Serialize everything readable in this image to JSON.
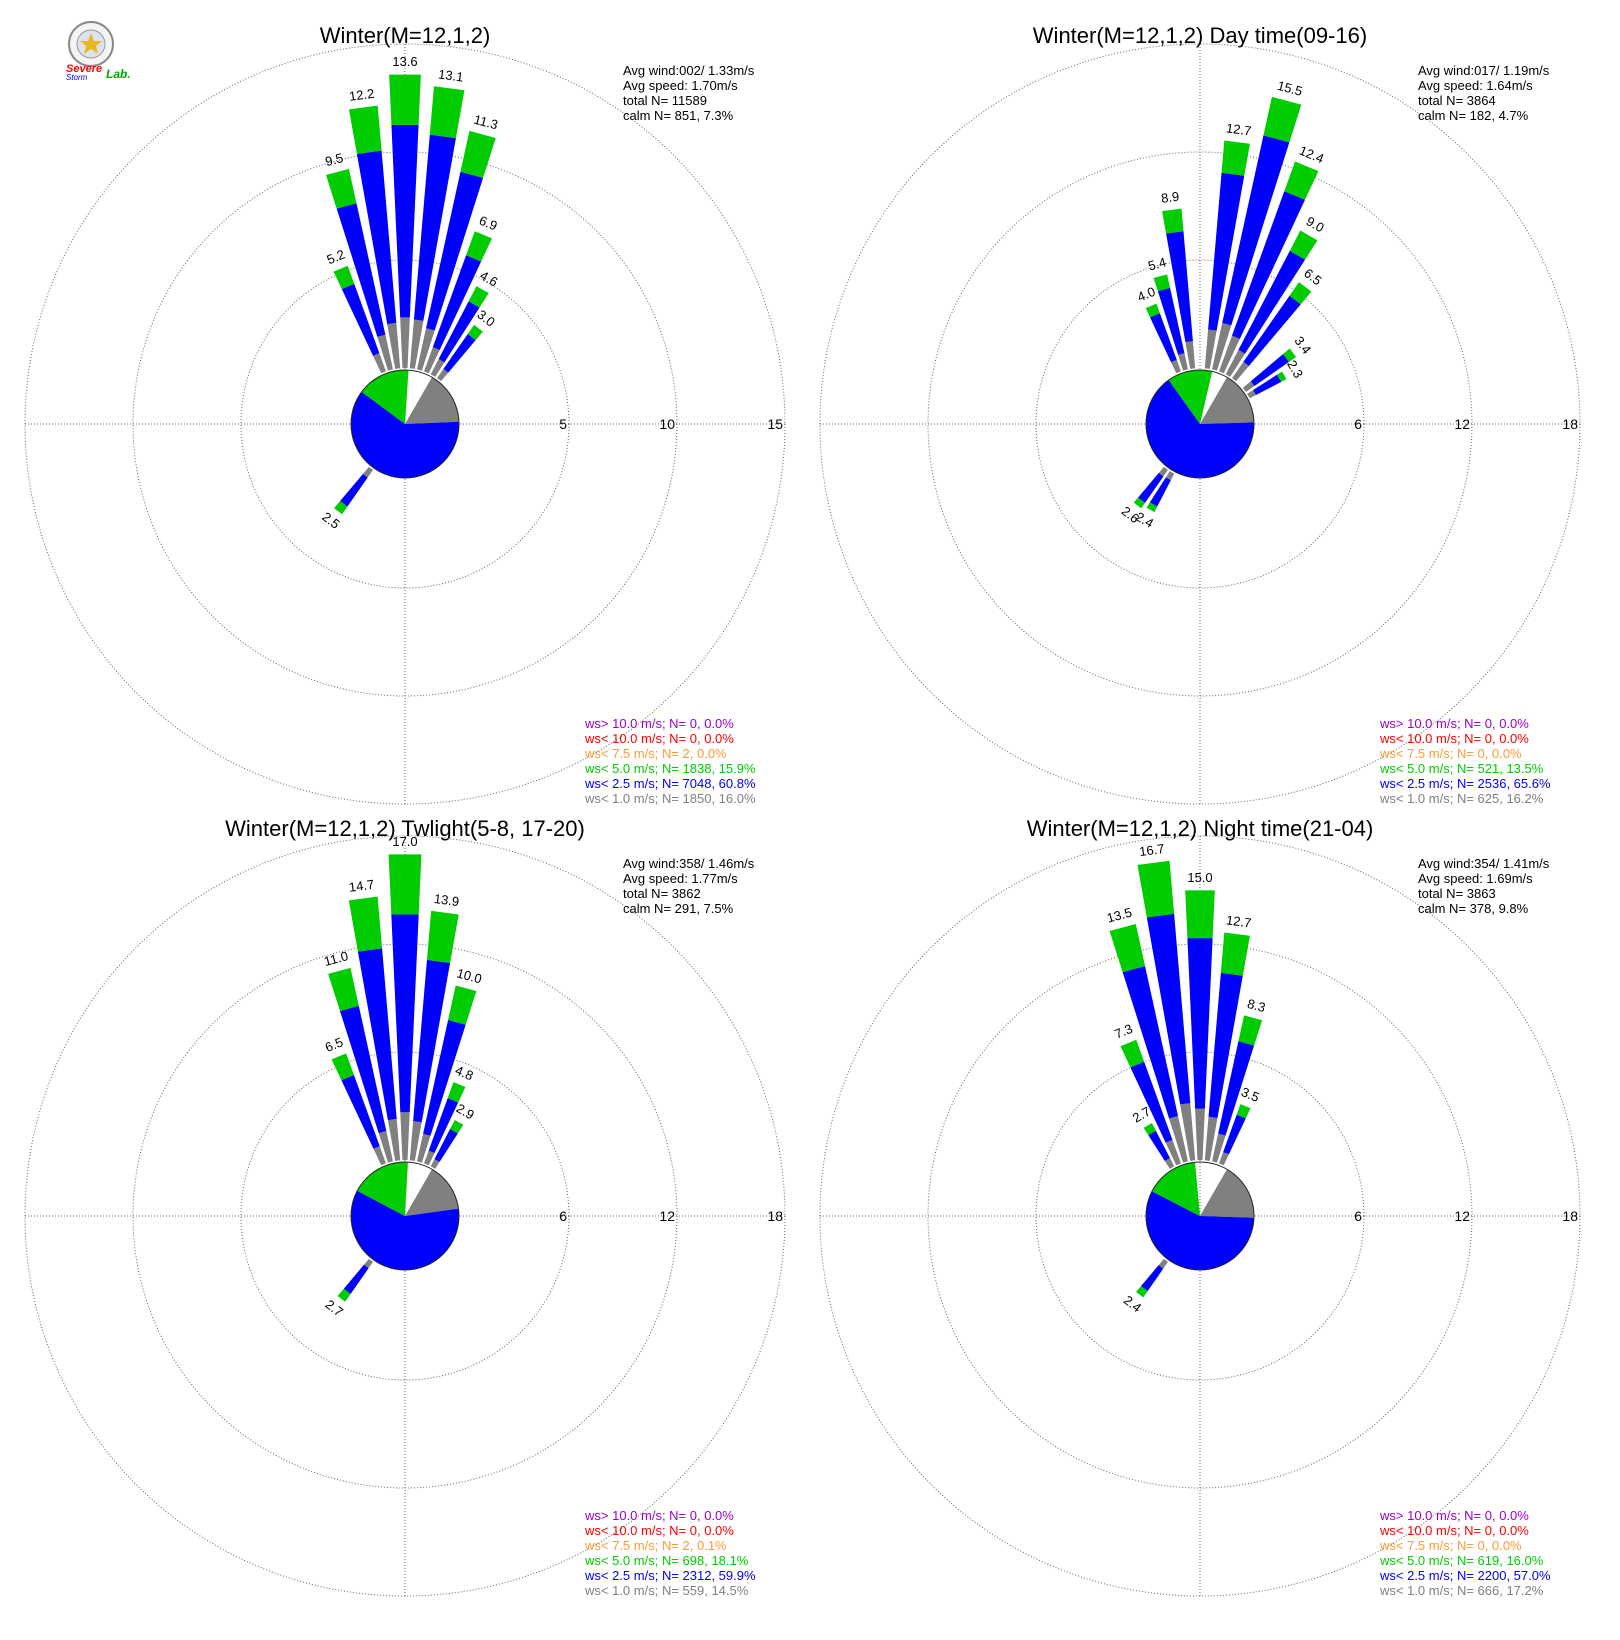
{
  "logo": {
    "line1": "Severe",
    "line2": "Storm",
    "line3": "Lab."
  },
  "colors": {
    "gray": "#808080",
    "blue": "#0000ff",
    "green": "#00cc00",
    "orange": "#ff9933",
    "red": "#ff0000",
    "purple": "#9900cc"
  },
  "chart_data": [
    {
      "type": "wind-rose",
      "title": "Winter(M=12,1,2)",
      "rmax": 15,
      "ticks": [
        5,
        10,
        15
      ],
      "stats": [
        "Avg wind:002/ 1.33m/s",
        "Avg speed: 1.70m/s",
        "total N=       11589",
        "calm N=    851,   7.3%"
      ],
      "sectors": [
        {
          "dir": 337.5,
          "total": 5.2
        },
        {
          "dir": 345,
          "total": 9.5
        },
        {
          "dir": 352.5,
          "total": 12.2
        },
        {
          "dir": 0,
          "total": 13.6
        },
        {
          "dir": 7.5,
          "total": 13.1
        },
        {
          "dir": 15,
          "total": 11.3
        },
        {
          "dir": 22.5,
          "total": 6.9
        },
        {
          "dir": 30,
          "total": 4.6
        },
        {
          "dir": 37.5,
          "total": 3.0
        },
        {
          "dir": 217.5,
          "total": 2.5
        }
      ],
      "pie": [
        16.0,
        60.8,
        15.9,
        0.0
      ],
      "legend": [
        {
          "text": "ws> 10.0 m/s; N=      0,  0.0%",
          "color": "purple"
        },
        {
          "text": "ws< 10.0 m/s; N=      0,  0.0%",
          "color": "red"
        },
        {
          "text": "ws<  7.5 m/s; N=      2,  0.0%",
          "color": "orange"
        },
        {
          "text": "ws<  5.0 m/s; N=  1838, 15.9%",
          "color": "green"
        },
        {
          "text": "ws<  2.5 m/s; N=  7048, 60.8%",
          "color": "blue"
        },
        {
          "text": "ws<  1.0 m/s; N=  1850, 16.0%",
          "color": "gray"
        }
      ]
    },
    {
      "type": "wind-rose",
      "title": "Winter(M=12,1,2) Day time(09-16)",
      "rmax": 18,
      "ticks": [
        6,
        12,
        18
      ],
      "stats": [
        "Avg wind:017/ 1.19m/s",
        "Avg speed: 1.64m/s",
        "total N=        3864",
        "calm N=    182,   4.7%"
      ],
      "sectors": [
        {
          "dir": 337.5,
          "total": 4.0
        },
        {
          "dir": 345,
          "total": 5.4
        },
        {
          "dir": 352.5,
          "total": 8.9
        },
        {
          "dir": 7.5,
          "total": 12.7
        },
        {
          "dir": 15,
          "total": 15.5
        },
        {
          "dir": 22.5,
          "total": 12.4
        },
        {
          "dir": 30,
          "total": 9.0
        },
        {
          "dir": 37.5,
          "total": 6.5
        },
        {
          "dir": 52.5,
          "total": 3.4
        },
        {
          "dir": 60,
          "total": 2.3
        },
        {
          "dir": 210,
          "total": 2.4
        },
        {
          "dir": 217.5,
          "total": 2.6
        }
      ],
      "pie": [
        16.2,
        65.6,
        13.5,
        0.0
      ],
      "legend": [
        {
          "text": "ws> 10.0 m/s; N=      0,  0.0%",
          "color": "purple"
        },
        {
          "text": "ws< 10.0 m/s; N=      0,  0.0%",
          "color": "red"
        },
        {
          "text": "ws<  7.5 m/s; N=      0,  0.0%",
          "color": "orange"
        },
        {
          "text": "ws<  5.0 m/s; N=    521, 13.5%",
          "color": "green"
        },
        {
          "text": "ws<  2.5 m/s; N=  2536, 65.6%",
          "color": "blue"
        },
        {
          "text": "ws<  1.0 m/s; N=    625, 16.2%",
          "color": "gray"
        }
      ]
    },
    {
      "type": "wind-rose",
      "title": "Winter(M=12,1,2) Twlight(5-8, 17-20)",
      "rmax": 18,
      "ticks": [
        6,
        12,
        18
      ],
      "stats": [
        "Avg wind:358/ 1.46m/s",
        "Avg speed: 1.77m/s",
        "total N=        3862",
        "calm N=    291,   7.5%"
      ],
      "sectors": [
        {
          "dir": 337.5,
          "total": 6.5
        },
        {
          "dir": 345,
          "total": 11.0
        },
        {
          "dir": 352.5,
          "total": 14.7
        },
        {
          "dir": 0,
          "total": 17.0
        },
        {
          "dir": 7.5,
          "total": 13.9
        },
        {
          "dir": 15,
          "total": 10.0
        },
        {
          "dir": 22.5,
          "total": 4.8
        },
        {
          "dir": 30,
          "total": 2.9
        },
        {
          "dir": 217.5,
          "total": 2.7
        }
      ],
      "pie": [
        14.5,
        59.9,
        18.1,
        0.1
      ],
      "legend": [
        {
          "text": "ws> 10.0 m/s; N=      0,  0.0%",
          "color": "purple"
        },
        {
          "text": "ws< 10.0 m/s; N=      0,  0.0%",
          "color": "red"
        },
        {
          "text": "ws<  7.5 m/s; N=      2,  0.1%",
          "color": "orange"
        },
        {
          "text": "ws<  5.0 m/s; N=    698, 18.1%",
          "color": "green"
        },
        {
          "text": "ws<  2.5 m/s; N=  2312, 59.9%",
          "color": "blue"
        },
        {
          "text": "ws<  1.0 m/s; N=    559, 14.5%",
          "color": "gray"
        }
      ]
    },
    {
      "type": "wind-rose",
      "title": "Winter(M=12,1,2) Night time(21-04)",
      "rmax": 18,
      "ticks": [
        6,
        12,
        18
      ],
      "stats": [
        "Avg wind:354/ 1.41m/s",
        "Avg speed: 1.69m/s",
        "total N=        3863",
        "calm N=    378,   9.8%"
      ],
      "sectors": [
        {
          "dir": 330,
          "total": 2.7
        },
        {
          "dir": 337.5,
          "total": 7.3
        },
        {
          "dir": 345,
          "total": 13.5
        },
        {
          "dir": 352.5,
          "total": 16.7
        },
        {
          "dir": 0,
          "total": 15.0
        },
        {
          "dir": 7.5,
          "total": 12.7
        },
        {
          "dir": 15,
          "total": 8.3
        },
        {
          "dir": 22.5,
          "total": 3.5
        },
        {
          "dir": 217.5,
          "total": 2.4
        }
      ],
      "pie": [
        17.2,
        57.0,
        16.0,
        0.0
      ],
      "legend": [
        {
          "text": "ws> 10.0 m/s; N=      0,  0.0%",
          "color": "purple"
        },
        {
          "text": "ws< 10.0 m/s; N=      0,  0.0%",
          "color": "red"
        },
        {
          "text": "ws<  7.5 m/s; N=      0,  0.0%",
          "color": "orange"
        },
        {
          "text": "ws<  5.0 m/s; N=    619, 16.0%",
          "color": "green"
        },
        {
          "text": "ws<  2.5 m/s; N=  2200, 57.0%",
          "color": "blue"
        },
        {
          "text": "ws<  1.0 m/s; N=    666, 17.2%",
          "color": "gray"
        }
      ]
    }
  ]
}
